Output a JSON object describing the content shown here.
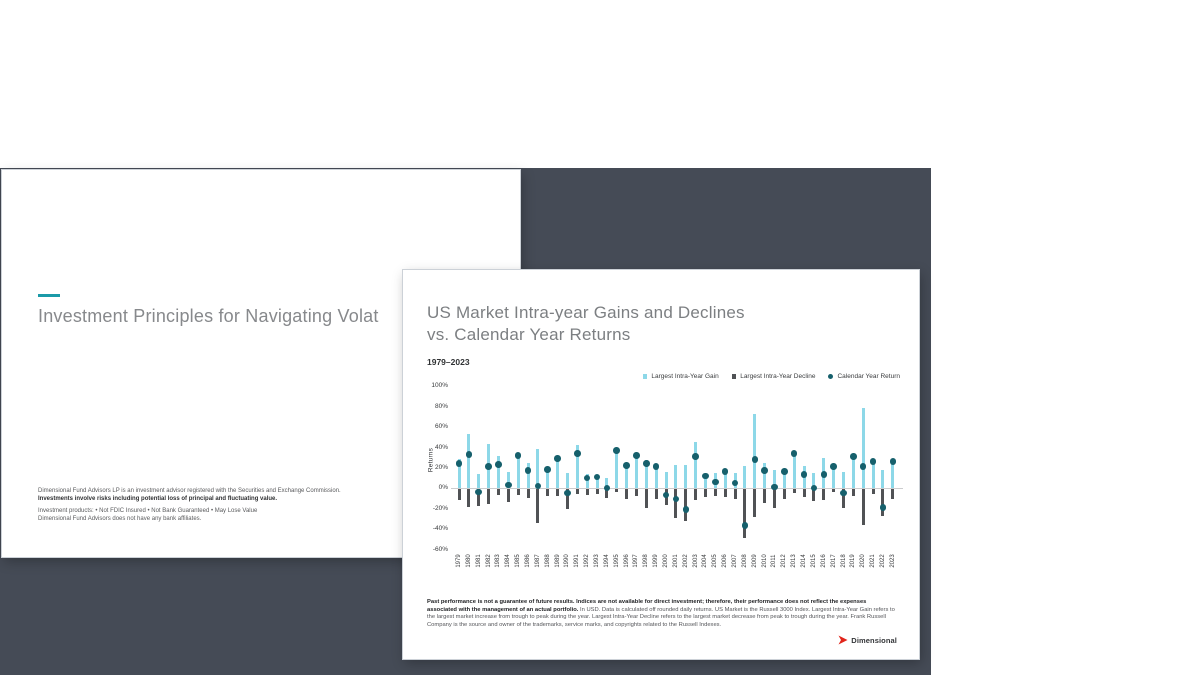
{
  "canvas": {
    "page_background": "#FFFFFF",
    "stage_color": "#454B56"
  },
  "back_slide": {
    "accent_color": "#1B9AA8",
    "title": "Investment Principles for Navigating Volat",
    "disclosures": [
      {
        "text": "Dimensional Fund Advisors LP is an investment advisor registered with the Securities and Exchange Commission.",
        "bold": false,
        "gap": false
      },
      {
        "text": "Investments involve risks including potential loss of principal and fluctuating value.",
        "bold": true,
        "gap": false
      },
      {
        "text": "Investment products: • Not FDIC Insured • Not Bank Guaranteed • May Lose Value",
        "bold": false,
        "gap": true
      },
      {
        "text": "Dimensional Fund Advisors does not have any bank affiliates.",
        "bold": false,
        "gap": false
      }
    ]
  },
  "front_slide": {
    "title_line1": "US Market Intra-year Gains and Declines",
    "title_line2": "vs. Calendar Year Returns",
    "subtitle": "1979–2023",
    "footnote_bold": "Past performance is not a guarantee of future results. Indices are not available for direct investment; therefore, their performance does not reflect the expenses associated with the management of an actual portfolio.",
    "footnote_rest": " In USD. Data is calculated off rounded daily returns. US Market is the Russell 3000 Index. Largest Intra-Year Gain refers to the largest market increase from trough to peak during the year. Largest Intra-Year Decline refers to the largest market decrease from peak to trough during the year. Frank Russell Company is the source and owner of the trademarks, service marks, and copyrights related to the Russell Indexes.",
    "logo_text": "Dimensional",
    "logo_color": "#E1251B"
  },
  "chart_data": {
    "type": "bar",
    "title": "US Market Intra-year Gains and Declines vs. Calendar Year Returns",
    "subtitle": "1979–2023",
    "ylabel": "Returns",
    "ylim": [
      -60,
      100
    ],
    "grid": false,
    "legend_position": "top-right",
    "ytick_labels": [
      "100%",
      "80%",
      "60%",
      "40%",
      "20%",
      "0%",
      "-20%",
      "-40%",
      "-60%"
    ],
    "legend": [
      {
        "label": "Largest Intra-Year Gain",
        "color": "#8DD8E8",
        "marker": "square"
      },
      {
        "label": "Largest Intra-Year Decline",
        "color": "#505255",
        "marker": "square"
      },
      {
        "label": "Calendar Year Return",
        "color": "#16606C",
        "marker": "circle"
      }
    ],
    "categories": [
      1979,
      1980,
      1981,
      1982,
      1983,
      1984,
      1985,
      1986,
      1987,
      1988,
      1989,
      1990,
      1991,
      1992,
      1993,
      1994,
      1995,
      1996,
      1997,
      1998,
      1999,
      2000,
      2001,
      2002,
      2003,
      2004,
      2005,
      2006,
      2007,
      2008,
      2009,
      2010,
      2011,
      2012,
      2013,
      2014,
      2015,
      2016,
      2017,
      2018,
      2019,
      2020,
      2021,
      2022,
      2023
    ],
    "series": [
      {
        "name": "Largest Intra-Year Gain",
        "values": [
          28,
          53,
          14,
          43,
          31,
          16,
          33,
          25,
          38,
          19,
          30,
          15,
          42,
          14,
          12,
          10,
          38,
          25,
          33,
          27,
          23,
          16,
          23,
          23,
          45,
          14,
          15,
          18,
          15,
          22,
          73,
          25,
          18,
          17,
          34,
          22,
          15,
          29,
          24,
          16,
          33,
          78,
          26,
          18,
          26
        ]
      },
      {
        "name": "Largest Intra-Year Decline",
        "values": [
          -11,
          -18,
          -17,
          -15,
          -6,
          -13,
          -6,
          -9,
          -33,
          -7,
          -7,
          -20,
          -5,
          -6,
          -5,
          -9,
          -3,
          -10,
          -7,
          -19,
          -10,
          -16,
          -28,
          -31,
          -11,
          -8,
          -7,
          -8,
          -10,
          -48,
          -27,
          -14,
          -19,
          -10,
          -4,
          -8,
          -12,
          -11,
          -3,
          -19,
          -7,
          -35,
          -5,
          -26,
          -10
        ]
      },
      {
        "name": "Calendar Year Return",
        "values": [
          24,
          33,
          -4,
          21,
          23,
          3,
          32,
          17,
          2,
          18,
          29,
          -5,
          34,
          10,
          11,
          0,
          37,
          22,
          32,
          24,
          21,
          -7,
          -11,
          -21,
          31,
          12,
          6,
          16,
          5,
          -37,
          28,
          17,
          1,
          16,
          34,
          13,
          0,
          13,
          21,
          -5,
          31,
          21,
          26,
          -19,
          26
        ]
      }
    ]
  }
}
